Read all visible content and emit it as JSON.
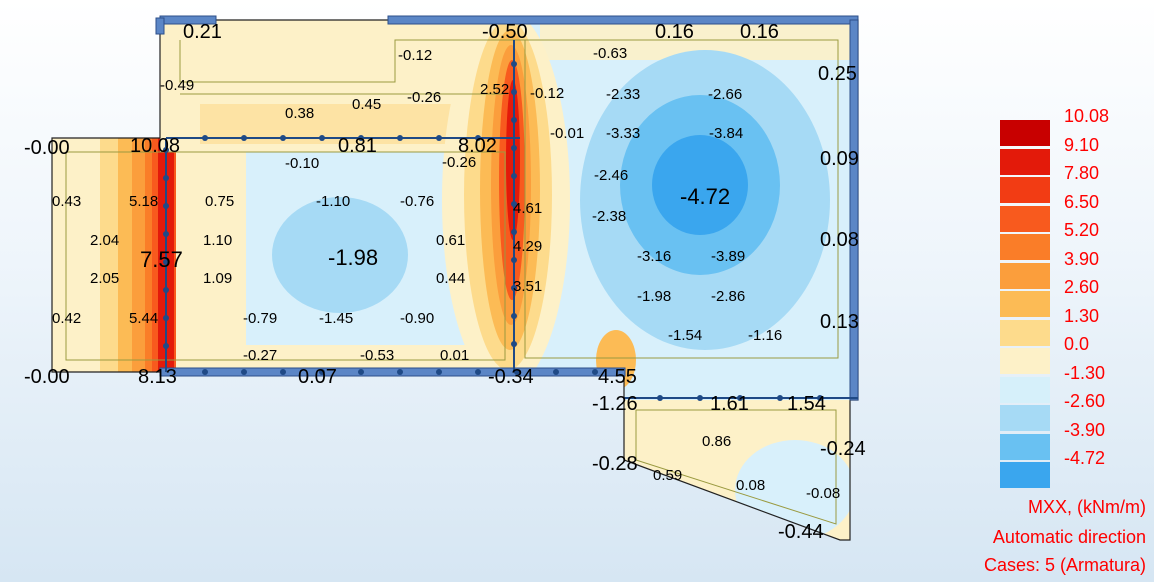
{
  "legend": {
    "items": [
      {
        "label": "10.08",
        "color": "#c80000"
      },
      {
        "label": "9.10",
        "color": "#e31a0a"
      },
      {
        "label": "7.80",
        "color": "#f23c14"
      },
      {
        "label": "6.50",
        "color": "#f85a1e"
      },
      {
        "label": "5.20",
        "color": "#fa7d28"
      },
      {
        "label": "3.90",
        "color": "#fb9e3c"
      },
      {
        "label": "2.60",
        "color": "#fcbb55"
      },
      {
        "label": "1.30",
        "color": "#fddb8c"
      },
      {
        "label": "0.0",
        "color": "#fdf1c8"
      },
      {
        "label": "-1.30",
        "color": "#d6f0fa"
      },
      {
        "label": "-2.60",
        "color": "#a6daf5"
      },
      {
        "label": "-3.90",
        "color": "#69c1f2"
      },
      {
        "label": "-4.72",
        "color": "#3aa6ee"
      }
    ],
    "quantity": "MXX, (kNm/m)",
    "direction": "Automatic direction",
    "cases": "Cases: 5 (Armatura)"
  },
  "values": [
    {
      "t": "0.21",
      "s": "L"
    },
    {
      "t": "-0.12",
      "s": "S"
    },
    {
      "t": "-0.50",
      "s": "L"
    },
    {
      "t": "-0.63",
      "s": "S"
    },
    {
      "t": "0.16",
      "s": "L"
    },
    {
      "t": "0.16",
      "s": "L"
    },
    {
      "t": "0.25",
      "s": "L"
    },
    {
      "t": "-0.49",
      "s": "S"
    },
    {
      "t": "-0.26",
      "s": "S"
    },
    {
      "t": "2.52",
      "s": "S"
    },
    {
      "t": "-0.12",
      "s": "S"
    },
    {
      "t": "-2.33",
      "s": "S"
    },
    {
      "t": "-2.66",
      "s": "S"
    },
    {
      "t": "0.38",
      "s": "S"
    },
    {
      "t": "0.45",
      "s": "S"
    },
    {
      "t": "-0.00",
      "s": "L"
    },
    {
      "t": "10.08",
      "s": "L"
    },
    {
      "t": "0.81",
      "s": "L"
    },
    {
      "t": "8.02",
      "s": "L"
    },
    {
      "t": "-0.01",
      "s": "S"
    },
    {
      "t": "-3.33",
      "s": "S"
    },
    {
      "t": "-3.84",
      "s": "S"
    },
    {
      "t": "-0.10",
      "s": "S"
    },
    {
      "t": "-0.26",
      "s": "S"
    },
    {
      "t": "0.09",
      "s": "L"
    },
    {
      "t": "-2.46",
      "s": "S"
    },
    {
      "t": "0.43",
      "s": "S"
    },
    {
      "t": "5.18",
      "s": "S"
    },
    {
      "t": "0.75",
      "s": "S"
    },
    {
      "t": "-1.10",
      "s": "S"
    },
    {
      "t": "-0.76",
      "s": "S"
    },
    {
      "t": "4.61",
      "s": "S"
    },
    {
      "t": "-2.38",
      "s": "S"
    },
    {
      "t": "-4.72",
      "s": "XL"
    },
    {
      "t": "2.04",
      "s": "S"
    },
    {
      "t": "1.10",
      "s": "S"
    },
    {
      "t": "0.61",
      "s": "S"
    },
    {
      "t": "4.29",
      "s": "S"
    },
    {
      "t": "0.08",
      "s": "L"
    },
    {
      "t": "7.57",
      "s": "XL"
    },
    {
      "t": "-1.98",
      "s": "XL"
    },
    {
      "t": "-3.16",
      "s": "S"
    },
    {
      "t": "-3.89",
      "s": "S"
    },
    {
      "t": "2.05",
      "s": "S"
    },
    {
      "t": "1.09",
      "s": "S"
    },
    {
      "t": "0.44",
      "s": "S"
    },
    {
      "t": "3.51",
      "s": "S"
    },
    {
      "t": "-1.98",
      "s": "S"
    },
    {
      "t": "-2.86",
      "s": "S"
    },
    {
      "t": "0.42",
      "s": "S"
    },
    {
      "t": "5.44",
      "s": "S"
    },
    {
      "t": "-0.79",
      "s": "S"
    },
    {
      "t": "-1.45",
      "s": "S"
    },
    {
      "t": "-0.90",
      "s": "S"
    },
    {
      "t": "0.13",
      "s": "L"
    },
    {
      "t": "-1.54",
      "s": "S"
    },
    {
      "t": "-1.16",
      "s": "S"
    },
    {
      "t": "-0.27",
      "s": "S"
    },
    {
      "t": "-0.53",
      "s": "S"
    },
    {
      "t": "0.01",
      "s": "S"
    },
    {
      "t": "-0.00",
      "s": "L"
    },
    {
      "t": "8.13",
      "s": "L"
    },
    {
      "t": "0.07",
      "s": "L"
    },
    {
      "t": "-0.34",
      "s": "L"
    },
    {
      "t": "4.55",
      "s": "L"
    },
    {
      "t": "-1.26",
      "s": "L"
    },
    {
      "t": "1.61",
      "s": "L"
    },
    {
      "t": "1.54",
      "s": "L"
    },
    {
      "t": "0.86",
      "s": "S"
    },
    {
      "t": "-0.24",
      "s": "L"
    },
    {
      "t": "-0.28",
      "s": "L"
    },
    {
      "t": "0.59",
      "s": "S"
    },
    {
      "t": "0.08",
      "s": "S"
    },
    {
      "t": "-0.08",
      "s": "S"
    },
    {
      "t": "-0.44",
      "s": "L"
    }
  ]
}
